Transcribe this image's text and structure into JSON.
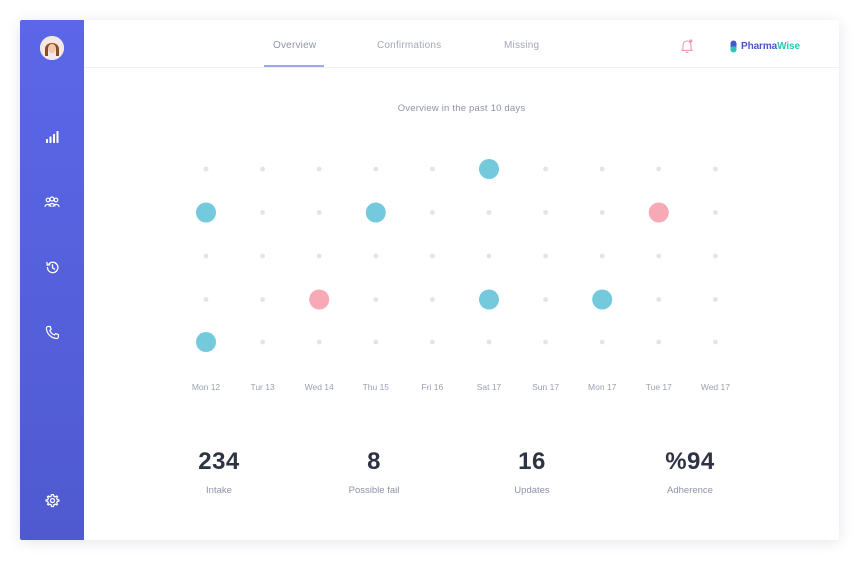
{
  "sidebar": {
    "avatar": "user-avatar",
    "icons": [
      "bar-chart-icon",
      "users-icon",
      "history-icon",
      "phone-icon",
      "settings-icon"
    ],
    "color": "#5661e0"
  },
  "nav": {
    "tabs": [
      {
        "label": "Overview",
        "active": true
      },
      {
        "label": "Confirmations",
        "active": false
      },
      {
        "label": "Missing",
        "active": false
      }
    ]
  },
  "header": {
    "bell_icon": "bell-icon",
    "logo_part1": "Pharma",
    "logo_part2": "Wise"
  },
  "chart_title": "Overview in the past 10 days",
  "chart_data": {
    "type": "scatter",
    "title": "Overview in the past 10 days",
    "categories": [
      "Mon 12",
      "Tur 13",
      "Wed 14",
      "Thu 15",
      "Fri 16",
      "Sat 17",
      "Sun 17",
      "Mon 17",
      "Tue 17",
      "Wed 17"
    ],
    "rows": 5,
    "colors": {
      "confirmed": "#74c9dc",
      "missed": "#f7aab6",
      "empty": "#e2e4ea"
    },
    "points": [
      {
        "col": 5,
        "row": 0,
        "status": "confirmed"
      },
      {
        "col": 0,
        "row": 1,
        "status": "confirmed"
      },
      {
        "col": 3,
        "row": 1,
        "status": "confirmed"
      },
      {
        "col": 8,
        "row": 1,
        "status": "missed"
      },
      {
        "col": 2,
        "row": 3,
        "status": "missed"
      },
      {
        "col": 5,
        "row": 3,
        "status": "confirmed"
      },
      {
        "col": 7,
        "row": 3,
        "status": "confirmed"
      },
      {
        "col": 0,
        "row": 4,
        "status": "confirmed"
      }
    ]
  },
  "stats": [
    {
      "value": "234",
      "label": "Intake"
    },
    {
      "value": "8",
      "label": "Possible fail"
    },
    {
      "value": "16",
      "label": "Updates"
    },
    {
      "value": "%94",
      "label": "Adherence"
    }
  ]
}
